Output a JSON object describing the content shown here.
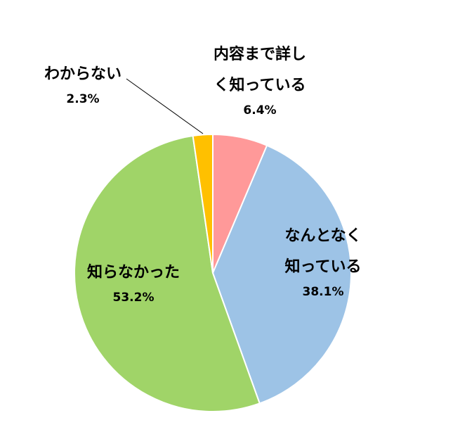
{
  "chart_data": {
    "type": "pie",
    "categories": [
      "内容まで詳しく知っている",
      "なんとなく知っている",
      "知らなかった",
      "わからない"
    ],
    "values": [
      6.4,
      38.1,
      53.2,
      2.3
    ],
    "value_labels": [
      "6.4%",
      "38.1%",
      "53.2%",
      "2.3%"
    ],
    "colors": [
      "#FF9999",
      "#9DC3E6",
      "#A0D468",
      "#FFC000"
    ]
  }
}
